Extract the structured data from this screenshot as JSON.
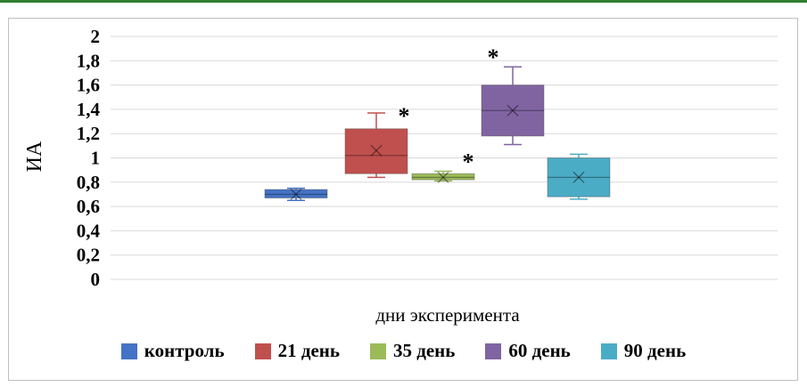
{
  "chart_data": {
    "type": "box",
    "ylabel": "ИА",
    "xlabel": "дни эксперимента",
    "ylim": [
      0,
      2
    ],
    "yticks": [
      "0",
      "0,2",
      "0,4",
      "0,6",
      "0,8",
      "1",
      "1,2",
      "1,4",
      "1,6",
      "1,8",
      "2"
    ],
    "grid": true,
    "legend_position": "bottom",
    "series": [
      {
        "name": "контроль",
        "color": "#4472c4",
        "min": 0.65,
        "q1": 0.67,
        "median": 0.7,
        "q3": 0.74,
        "max": 0.75,
        "mean": 0.7,
        "mark": ""
      },
      {
        "name": "21 день",
        "color": "#c0504d",
        "min": 0.84,
        "q1": 0.87,
        "median": 1.02,
        "q3": 1.24,
        "max": 1.37,
        "mean": 1.06,
        "mark": "*"
      },
      {
        "name": "35 день",
        "color": "#9bbb59",
        "min": 0.81,
        "q1": 0.82,
        "median": 0.84,
        "q3": 0.87,
        "max": 0.89,
        "mean": 0.84,
        "mark": "*"
      },
      {
        "name": "60 день",
        "color": "#8064a2",
        "min": 1.11,
        "q1": 1.18,
        "median": 1.39,
        "q3": 1.6,
        "max": 1.75,
        "mean": 1.39,
        "mark": "*"
      },
      {
        "name": "90 день",
        "color": "#4bacc6",
        "min": 0.66,
        "q1": 0.68,
        "median": 0.84,
        "q3": 1.0,
        "max": 1.03,
        "mean": 0.84,
        "mark": ""
      }
    ]
  }
}
